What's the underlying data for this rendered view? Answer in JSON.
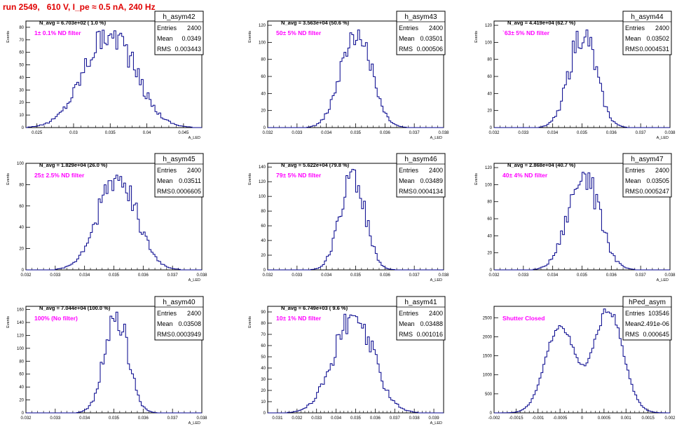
{
  "run_title": "run 2549,   610 V, I_pe ≈ 0.5 nA, 240 Hz",
  "colors": {
    "title": "#e00000",
    "histogram": "#00008b",
    "annotation": "#ff00ff",
    "axis": "#000000"
  },
  "chart_data": [
    {
      "type": "histogram",
      "name": "h_asym42",
      "norm": "N_avg = 6.703e+02 ( 1.0 %)",
      "label": "1± 0.1% ND filter",
      "stats": [
        {
          "k": "Entries",
          "v": "2400"
        },
        {
          "k": "Mean",
          "v": "0.0349"
        },
        {
          "k": "RMS",
          "v": "0.003443"
        }
      ],
      "ylabel": "Events",
      "xlabel": "A_LED",
      "xlim": [
        0.0235,
        0.0475
      ],
      "ylim": [
        0,
        85
      ],
      "xticks": [
        "0.025",
        "0.03",
        "0.035",
        "0.04",
        "0.045"
      ],
      "xtick_values": [
        0.025,
        0.03,
        0.035,
        0.04,
        0.045
      ],
      "yticks": [
        "0",
        "10",
        "20",
        "30",
        "40",
        "50",
        "60",
        "70",
        "80"
      ],
      "ytick_values": [
        0,
        10,
        20,
        30,
        40,
        50,
        60,
        70,
        80
      ],
      "mean": 0.0349,
      "rms": 0.003443,
      "peak": 80
    },
    {
      "type": "histogram",
      "name": "h_asym43",
      "norm": "N_avg = 3.563e+04 (50.6 %)",
      "label": "50± 5% ND filter",
      "stats": [
        {
          "k": "Entries",
          "v": "2400"
        },
        {
          "k": "Mean",
          "v": "0.03501"
        },
        {
          "k": "RMS",
          "v": "0.000506"
        }
      ],
      "ylabel": "Events",
      "xlabel": "A_LED",
      "xlim": [
        0.032,
        0.038
      ],
      "ylim": [
        0,
        125
      ],
      "xticks": [
        "0.032",
        "0.033",
        "0.034",
        "0.035",
        "0.036",
        "0.037",
        "0.038"
      ],
      "xtick_values": [
        0.032,
        0.033,
        0.034,
        0.035,
        0.036,
        0.037,
        0.038
      ],
      "yticks": [
        "0",
        "20",
        "40",
        "60",
        "80",
        "100",
        "120"
      ],
      "ytick_values": [
        0,
        20,
        40,
        60,
        80,
        100,
        120
      ],
      "mean": 0.03501,
      "rms": 0.000506,
      "peak": 120
    },
    {
      "type": "histogram",
      "name": "h_asym44",
      "norm": "N_avg = 4.419e+04 (62.7 %)",
      "label": "`63± 5% ND filter",
      "stats": [
        {
          "k": "Entries",
          "v": "2400"
        },
        {
          "k": "Mean",
          "v": "0.03502"
        },
        {
          "k": "RMS",
          "v": "0.0004531"
        }
      ],
      "ylabel": "Events",
      "xlabel": "A_LED",
      "xlim": [
        0.032,
        0.038
      ],
      "ylim": [
        0,
        125
      ],
      "xticks": [
        "0.032",
        "0.033",
        "0.034",
        "0.035",
        "0.036",
        "0.037",
        "0.038"
      ],
      "xtick_values": [
        0.032,
        0.033,
        0.034,
        0.035,
        0.036,
        0.037,
        0.038
      ],
      "yticks": [
        "0",
        "20",
        "40",
        "60",
        "80",
        "100",
        "120"
      ],
      "ytick_values": [
        0,
        20,
        40,
        60,
        80,
        100,
        120
      ],
      "mean": 0.03502,
      "rms": 0.0004531,
      "peak": 115
    },
    {
      "type": "histogram",
      "name": "h_asym45",
      "norm": "N_avg = 1.829e+04 (26.0 %)",
      "label": "25± 2.5% ND filter",
      "stats": [
        {
          "k": "Entries",
          "v": "2400"
        },
        {
          "k": "Mean",
          "v": "0.03511"
        },
        {
          "k": "RMS",
          "v": "0.0006605"
        }
      ],
      "ylabel": "Events",
      "xlabel": "A_LED",
      "xlim": [
        0.032,
        0.038
      ],
      "ylim": [
        0,
        100
      ],
      "xticks": [
        "0.032",
        "0.033",
        "0.034",
        "0.035",
        "0.036",
        "0.037",
        "0.038"
      ],
      "xtick_values": [
        0.032,
        0.033,
        0.034,
        0.035,
        0.036,
        0.037,
        0.038
      ],
      "yticks": [
        "0",
        "20",
        "40",
        "60",
        "80",
        "100"
      ],
      "ytick_values": [
        0,
        20,
        40,
        60,
        80,
        100
      ],
      "mean": 0.03511,
      "rms": 0.0006605,
      "peak": 90
    },
    {
      "type": "histogram",
      "name": "h_asym46",
      "norm": "N_avg = 5.622e+04 (79.8 %)",
      "label": "79± 5% ND filter",
      "stats": [
        {
          "k": "Entries",
          "v": "2400"
        },
        {
          "k": "Mean",
          "v": "0.03489"
        },
        {
          "k": "RMS",
          "v": "0.0004134"
        }
      ],
      "ylabel": "Events",
      "xlabel": "A_LED",
      "xlim": [
        0.032,
        0.038
      ],
      "ylim": [
        0,
        145
      ],
      "xticks": [
        "0.032",
        "0.033",
        "0.034",
        "0.035",
        "0.036",
        "0.037",
        "0.038"
      ],
      "xtick_values": [
        0.032,
        0.033,
        0.034,
        0.035,
        0.036,
        0.037,
        0.038
      ],
      "yticks": [
        "0",
        "20",
        "40",
        "60",
        "80",
        "100",
        "120",
        "140"
      ],
      "ytick_values": [
        0,
        20,
        40,
        60,
        80,
        100,
        120,
        140
      ],
      "mean": 0.03489,
      "rms": 0.0004134,
      "peak": 140
    },
    {
      "type": "histogram",
      "name": "h_asym47",
      "norm": "N_avg = 2.868e+04 (40.7 %)",
      "label": "40± 4% ND filter",
      "stats": [
        {
          "k": "Entries",
          "v": "2400"
        },
        {
          "k": "Mean",
          "v": "0.03505"
        },
        {
          "k": "RMS",
          "v": "0.0005247"
        }
      ],
      "ylabel": "Events",
      "xlabel": "A_LED",
      "xlim": [
        0.032,
        0.038
      ],
      "ylim": [
        0,
        125
      ],
      "xticks": [
        "0.032",
        "0.033",
        "0.034",
        "0.035",
        "0.036",
        "0.037",
        "0.038"
      ],
      "xtick_values": [
        0.032,
        0.033,
        0.034,
        0.035,
        0.036,
        0.037,
        0.038
      ],
      "yticks": [
        "0",
        "20",
        "40",
        "60",
        "80",
        "100",
        "120"
      ],
      "ytick_values": [
        0,
        20,
        40,
        60,
        80,
        100,
        120
      ],
      "mean": 0.03505,
      "rms": 0.0005247,
      "peak": 115
    },
    {
      "type": "histogram",
      "name": "h_asym40",
      "norm": "N_avg = 7.044e+04 (100.0 %)",
      "label": "100% (No filter)",
      "stats": [
        {
          "k": "Entries",
          "v": "2400"
        },
        {
          "k": "Mean",
          "v": "0.03508"
        },
        {
          "k": "RMS",
          "v": "0.0003949"
        }
      ],
      "ylabel": "Events",
      "xlabel": "A_LED",
      "xlim": [
        0.032,
        0.038
      ],
      "ylim": [
        0,
        165
      ],
      "xticks": [
        "0.032",
        "0.033",
        "0.034",
        "0.035",
        "0.036",
        "0.037",
        "0.038"
      ],
      "xtick_values": [
        0.032,
        0.033,
        0.034,
        0.035,
        0.036,
        0.037,
        0.038
      ],
      "yticks": [
        "0",
        "20",
        "40",
        "60",
        "80",
        "100",
        "120",
        "140",
        "160"
      ],
      "ytick_values": [
        0,
        20,
        40,
        60,
        80,
        100,
        120,
        140,
        160
      ],
      "mean": 0.03508,
      "rms": 0.0003949,
      "peak": 160
    },
    {
      "type": "histogram",
      "name": "h_asym41",
      "norm": "N_avg = 6.749e+03 ( 9.6 %)",
      "label": "10± 1% ND filter",
      "stats": [
        {
          "k": "Entries",
          "v": "2400"
        },
        {
          "k": "Mean",
          "v": "0.03488"
        },
        {
          "k": "RMS",
          "v": "0.001016"
        }
      ],
      "ylabel": "Events",
      "xlabel": "A_LED",
      "xlim": [
        0.0305,
        0.0395
      ],
      "ylim": [
        0,
        95
      ],
      "xticks": [
        "0.031",
        "0.032",
        "0.033",
        "0.034",
        "0.035",
        "0.036",
        "0.037",
        "0.038",
        "0.039"
      ],
      "xtick_values": [
        0.031,
        0.032,
        0.033,
        0.034,
        0.035,
        0.036,
        0.037,
        0.038,
        0.039
      ],
      "yticks": [
        "0",
        "10",
        "20",
        "30",
        "40",
        "50",
        "60",
        "70",
        "80",
        "90"
      ],
      "ytick_values": [
        0,
        10,
        20,
        30,
        40,
        50,
        60,
        70,
        80,
        90
      ],
      "mean": 0.03488,
      "rms": 0.001016,
      "peak": 88
    },
    {
      "type": "histogram",
      "name": "hPed_asym",
      "norm": "",
      "label": "Shutter Closed",
      "stats": [
        {
          "k": "Entries",
          "v": "103546"
        },
        {
          "k": "Mean",
          "v": "-2.491e-06"
        },
        {
          "k": "RMS",
          "v": "0.000645"
        }
      ],
      "ylabel": "",
      "xlabel": "",
      "xlim": [
        -0.002,
        0.002
      ],
      "ylim": [
        0,
        2800
      ],
      "xticks": [
        "-0.002",
        "-0.0015",
        "-0.001",
        "-0.0005",
        "0",
        "0.0005",
        "0.001",
        "0.0015",
        "0.002"
      ],
      "xtick_values": [
        -0.002,
        -0.0015,
        -0.001,
        -0.0005,
        0,
        0.0005,
        0.001,
        0.0015,
        0.002
      ],
      "yticks": [
        "0",
        "500",
        "1000",
        "1500",
        "2000",
        "2500"
      ],
      "ytick_values": [
        0,
        500,
        1000,
        1500,
        2000,
        2500
      ],
      "bimodal": true,
      "peaks": [
        {
          "x": -0.0005,
          "h": 2300
        },
        {
          "x": 0.0006,
          "h": 2700
        }
      ],
      "dip": 1100
    }
  ]
}
